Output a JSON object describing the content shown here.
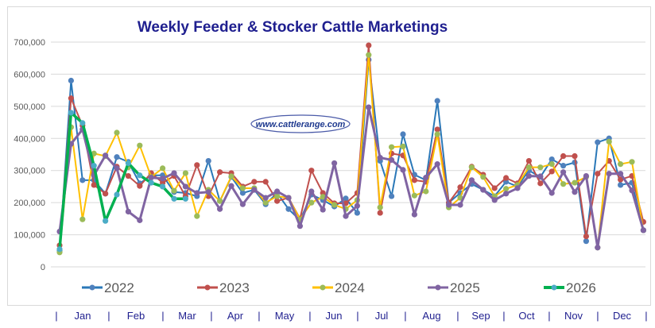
{
  "chart_data": {
    "type": "line",
    "title": "Weekly Feeder & Stocker Cattle Marketings",
    "watermark": "www.cattlerange.com",
    "xlabel": "",
    "ylabel": "",
    "ylim": [
      0,
      700000
    ],
    "yticks": [
      "0",
      "100,000",
      "200,000",
      "300,000",
      "400,000",
      "500,000",
      "600,000",
      "700,000"
    ],
    "ytick_values": [
      0,
      100000,
      200000,
      300000,
      400000,
      500000,
      600000,
      700000
    ],
    "grid": true,
    "legend_position": "bottom",
    "x_unit": "week of year (1-52)",
    "months": [
      "Jan",
      "Feb",
      "Mar",
      "Apr",
      "May",
      "Jun",
      "Jul",
      "Aug",
      "Sep",
      "Oct",
      "Nov",
      "Dec"
    ],
    "series": [
      {
        "name": "2022",
        "color": "#2a78b8",
        "marker": "#4f81bd",
        "values": [
          50,
          580,
          270,
          270,
          228,
          342,
          327,
          260,
          285,
          285,
          233,
          230,
          220,
          330,
          205,
          280,
          230,
          240,
          195,
          230,
          180,
          145,
          225,
          208,
          188,
          213,
          168,
          645,
          330,
          220,
          413,
          287,
          270,
          517,
          200,
          230,
          258,
          240,
          220,
          265,
          250,
          300,
          280,
          335,
          315,
          325,
          80,
          388,
          400,
          255,
          262,
          114
        ]
      },
      {
        "name": "2023",
        "color": "#c0504d",
        "marker": "#c0504d",
        "values": [
          67,
          525,
          440,
          255,
          228,
          312,
          283,
          252,
          292,
          262,
          283,
          220,
          317,
          220,
          295,
          292,
          250,
          265,
          265,
          205,
          215,
          150,
          300,
          230,
          198,
          198,
          230,
          690,
          168,
          353,
          347,
          270,
          265,
          428,
          200,
          248,
          312,
          287,
          245,
          277,
          260,
          330,
          260,
          297,
          345,
          345,
          95,
          290,
          330,
          272,
          283,
          140
        ]
      },
      {
        "name": "2024",
        "color": "#ffc000",
        "marker": "#9bbb59",
        "values": [
          45,
          435,
          148,
          353,
          345,
          418,
          310,
          378,
          280,
          307,
          237,
          292,
          158,
          240,
          205,
          282,
          245,
          245,
          200,
          220,
          215,
          148,
          200,
          218,
          193,
          180,
          208,
          660,
          185,
          373,
          375,
          222,
          235,
          413,
          185,
          215,
          310,
          280,
          220,
          243,
          255,
          310,
          310,
          320,
          258,
          262,
          280,
          60,
          390,
          320,
          327,
          114
        ]
      },
      {
        "name": "2025",
        "color": "#8064a2",
        "marker": "#8064a2",
        "values": [
          110,
          383,
          428,
          285,
          347,
          307,
          172,
          145,
          278,
          275,
          292,
          250,
          230,
          233,
          180,
          252,
          195,
          240,
          215,
          235,
          215,
          127,
          235,
          178,
          323,
          158,
          190,
          497,
          340,
          333,
          302,
          163,
          278,
          320,
          193,
          193,
          270,
          240,
          208,
          228,
          245,
          283,
          282,
          230,
          295,
          233,
          283,
          60,
          290,
          290,
          238,
          114
        ]
      },
      {
        "name": "2026",
        "color": "#00b050",
        "marker": "#4bacc6",
        "values": [
          55,
          480,
          448,
          315,
          143,
          225,
          323,
          285,
          262,
          250,
          212,
          212
        ]
      }
    ]
  }
}
